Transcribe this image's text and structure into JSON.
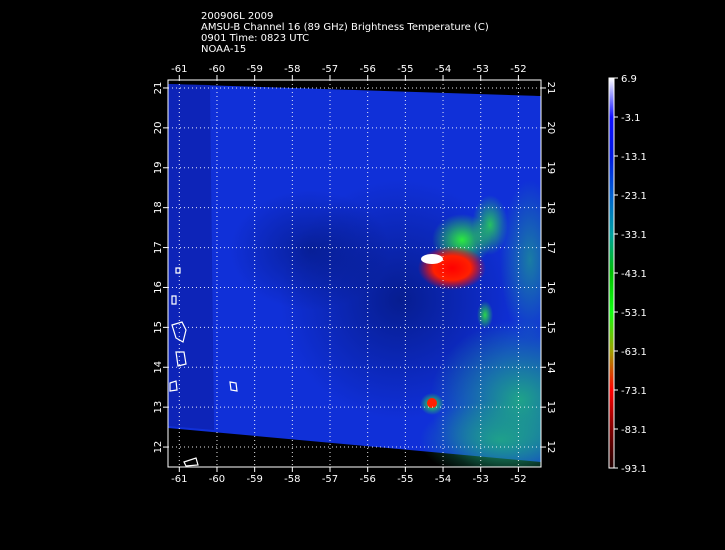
{
  "header": {
    "line1": "200906L 2009",
    "line2": "AMSU-B Channel 16 (89 GHz) Brightness Temperature (C)",
    "line3": "0901 Time: 0823 UTC",
    "line4": "NOAA-15"
  },
  "map": {
    "lon_labels": [
      "-61",
      "-60",
      "-59",
      "-58",
      "-57",
      "-56",
      "-55",
      "-54",
      "-53",
      "-52"
    ],
    "lat_labels": [
      "21",
      "20",
      "19",
      "18",
      "17",
      "16",
      "15",
      "14",
      "13",
      "12"
    ],
    "lon_range": [
      -61.3,
      -51.4
    ],
    "lat_range": [
      11.5,
      21.2
    ],
    "grid": true,
    "background_color": "#0a30d0",
    "coastline_color": "#ffffff"
  },
  "colorbar": {
    "labels": [
      "6.9",
      "-3.1",
      "-13.1",
      "-23.1",
      "-33.1",
      "-43.1",
      "-53.1",
      "-63.1",
      "-73.1",
      "-83.1",
      "-93.1"
    ],
    "colors": [
      "#ffffff",
      "#1010ff",
      "#0018e0",
      "#0060d0",
      "#00a0a0",
      "#00c000",
      "#10ff10",
      "#a0a000",
      "#ff0000",
      "#800000",
      "#200000"
    ]
  }
}
